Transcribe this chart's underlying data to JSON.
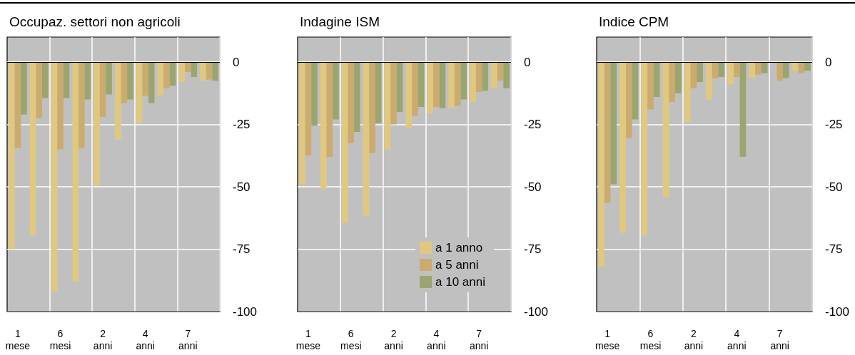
{
  "chart_data": [
    {
      "type": "bar",
      "title": "Occupaz. settori non agricoli",
      "categories": [
        "1 mese",
        null,
        "6 mesi",
        null,
        "2 anni",
        null,
        "4 anni",
        null,
        "7 anni",
        null
      ],
      "ylim": [
        -100,
        10
      ],
      "yticks": [
        0,
        -25,
        -50,
        -75,
        -100
      ],
      "grid": true,
      "legend": false,
      "series": [
        {
          "color": "#e0c97f",
          "values": [
            -75,
            -69.5,
            -92,
            -88,
            -49.5,
            -31,
            -24.5,
            -13.5,
            -8,
            -7.5
          ]
        },
        {
          "color": "#cbab6e",
          "values": [
            -34.5,
            -22.5,
            -35,
            -34.5,
            -22,
            -16.5,
            -13.5,
            -10.5,
            -4,
            -7
          ]
        },
        {
          "color": "#9aa56f",
          "values": [
            -21,
            -14.5,
            -14.5,
            -15,
            -13,
            -15,
            -16.5,
            -9.5,
            -6,
            -7.5
          ]
        }
      ]
    },
    {
      "type": "bar",
      "title": "Indagine ISM",
      "categories": [
        "1 mese",
        null,
        "6 mesi",
        null,
        "2 anni",
        null,
        "4 anni",
        null,
        "7 anni",
        null
      ],
      "ylim": [
        -100,
        10
      ],
      "yticks": [
        0,
        -25,
        -50,
        -75,
        -100
      ],
      "grid": true,
      "legend": "bottom right",
      "series": [
        {
          "name": "a 1 anno",
          "color": "#e0c97f",
          "values": [
            -49,
            -51,
            -64.5,
            -61.5,
            -35,
            -26.5,
            -20.5,
            -18.5,
            -16,
            -10.5
          ]
        },
        {
          "name": "a 5 anni",
          "color": "#cbab6e",
          "values": [
            -37.5,
            -38,
            -32.5,
            -36.5,
            -25,
            -21.5,
            -18,
            -17.5,
            -12,
            -7.5
          ]
        },
        {
          "name": "a 10 anni",
          "color": "#9aa56f",
          "values": [
            -25.5,
            -23,
            -28,
            -24.5,
            -20,
            -18,
            -18.5,
            -15,
            -11.5,
            -10.5
          ]
        }
      ]
    },
    {
      "type": "bar",
      "title": "Indice CPM",
      "categories": [
        "1 mese",
        null,
        "6 mesi",
        null,
        "2 anni",
        null,
        "4 anni",
        null,
        "7 anni",
        null
      ],
      "ylim": [
        -100,
        10
      ],
      "yticks": [
        0,
        -25,
        -50,
        -75,
        -100
      ],
      "grid": true,
      "legend": false,
      "series": [
        {
          "color": "#e0c97f",
          "values": [
            -82,
            -68.5,
            -69.5,
            -54,
            -24,
            -15,
            -9,
            -6.5,
            null,
            -3.5
          ]
        },
        {
          "color": "#cbab6e",
          "values": [
            -56.5,
            -30.5,
            -19,
            -16,
            -10.5,
            -6.5,
            -6,
            -5,
            -7.5,
            -4.5
          ]
        },
        {
          "color": "#9aa56f",
          "values": [
            -49,
            -23,
            -14,
            -12.5,
            -8,
            -6,
            -38,
            -4.5,
            -6.5,
            -3.5
          ]
        }
      ]
    }
  ]
}
